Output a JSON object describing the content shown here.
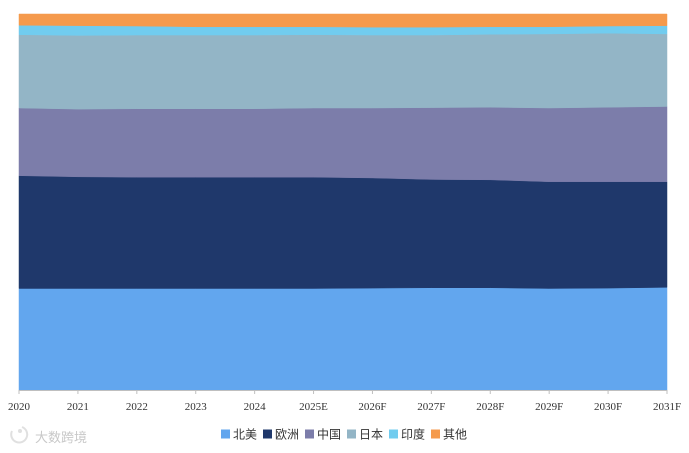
{
  "chart_data": {
    "type": "area",
    "stacked": true,
    "normalized": true,
    "categories": [
      "2020",
      "2021",
      "2022",
      "2023",
      "2024",
      "2025E",
      "2026F",
      "2027F",
      "2028F",
      "2029F",
      "2030F",
      "2031F"
    ],
    "series": [
      {
        "name": "北美",
        "color": "#62a6ee",
        "values": [
          27.0,
          27.0,
          27.0,
          27.0,
          27.0,
          27.0,
          27.1,
          27.2,
          27.2,
          27.0,
          27.1,
          27.3
        ]
      },
      {
        "name": "欧洲",
        "color": "#1f386b",
        "values": [
          30.0,
          29.7,
          29.6,
          29.6,
          29.6,
          29.6,
          29.3,
          28.8,
          28.7,
          28.4,
          28.3,
          28.1
        ]
      },
      {
        "name": "中国",
        "color": "#7c7daa",
        "values": [
          18.0,
          18.0,
          18.2,
          18.2,
          18.2,
          18.4,
          18.6,
          19.1,
          19.3,
          19.6,
          19.8,
          20.0
        ]
      },
      {
        "name": "日本",
        "color": "#93b5c6",
        "values": [
          19.5,
          19.6,
          19.6,
          19.6,
          19.6,
          19.5,
          19.4,
          19.3,
          19.4,
          19.7,
          19.7,
          19.3
        ]
      },
      {
        "name": "印度",
        "color": "#71ccef",
        "values": [
          2.5,
          2.6,
          2.4,
          2.2,
          2.2,
          2.1,
          2.1,
          2.1,
          2.0,
          1.9,
          1.9,
          2.2
        ]
      },
      {
        "name": "其他",
        "color": "#f59a4c",
        "values": [
          3.0,
          3.1,
          3.2,
          3.4,
          3.4,
          3.4,
          3.5,
          3.5,
          3.4,
          3.4,
          3.2,
          3.1
        ]
      }
    ],
    "ylim": [
      0,
      100
    ],
    "grid": false,
    "legend_position": "bottom"
  },
  "watermark": {
    "text": "大数跨境"
  }
}
